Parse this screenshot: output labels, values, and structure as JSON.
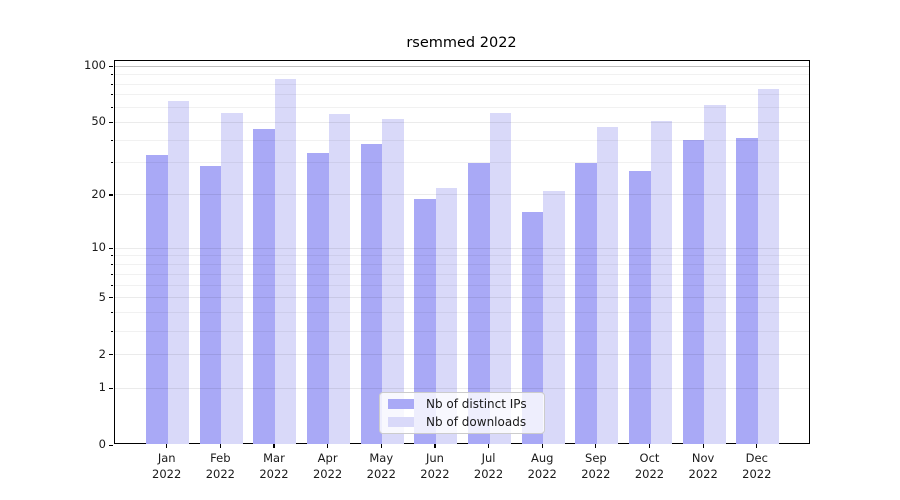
{
  "chart_data": {
    "type": "bar",
    "title": "rsemmed 2022",
    "x_axis": {
      "months": [
        "Jan",
        "Feb",
        "Mar",
        "Apr",
        "May",
        "Jun",
        "Jul",
        "Aug",
        "Sep",
        "Oct",
        "Nov",
        "Dec"
      ],
      "year_label": "2022"
    },
    "y_axis": {
      "scale": "log10(1+v)",
      "major_ticks": [
        0,
        1,
        2,
        5,
        10,
        20,
        50,
        100
      ],
      "minor_ticks": [
        3,
        4,
        6,
        7,
        8,
        9,
        30,
        40,
        60,
        70,
        80,
        90
      ],
      "range": [
        0,
        108
      ]
    },
    "series": [
      {
        "name": "Nb of distinct IPs",
        "color": "#a9a9f6",
        "values": [
          33,
          29,
          46,
          34,
          38,
          19,
          30,
          16,
          30,
          27,
          40,
          41
        ]
      },
      {
        "name": "Nb of downloads",
        "color": "#d9d9f9",
        "values": [
          65,
          56,
          85,
          55,
          52,
          22,
          56,
          21,
          47,
          51,
          62,
          75
        ]
      }
    ],
    "grid": true,
    "legend_position": "lower-center"
  }
}
